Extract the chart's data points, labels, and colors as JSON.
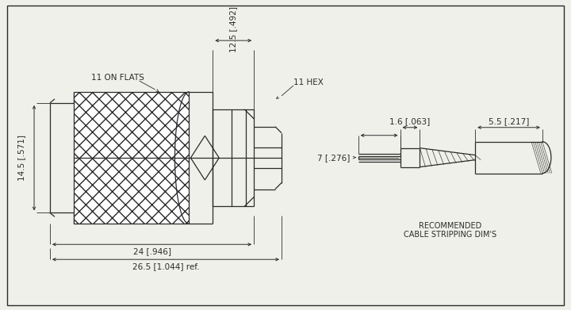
{
  "bg_color": "#f0f0eb",
  "line_color": "#2a2a2a",
  "dim_color": "#2a2a2a",
  "annotation_fontsize": 7.5,
  "title_fontsize": 7.0,
  "fig_width": 7.2,
  "fig_height": 3.91,
  "labels": {
    "on_flats": "11 ON FLATS",
    "hex": "11 HEX",
    "dim_12_5": "12.5 [.492]",
    "dim_14_5": "14.5 [.571]",
    "dim_24": "24 [.946]",
    "dim_26_5": "26.5 [1.044] ref.",
    "dim_7": "7 [.276]",
    "dim_1_6": "1.6 [.063]",
    "dim_5_5": "5.5 [.217]",
    "rec_cable_1": "RECOMMENDED",
    "rec_cable_2": "CABLE STRIPPING DIM'S"
  }
}
